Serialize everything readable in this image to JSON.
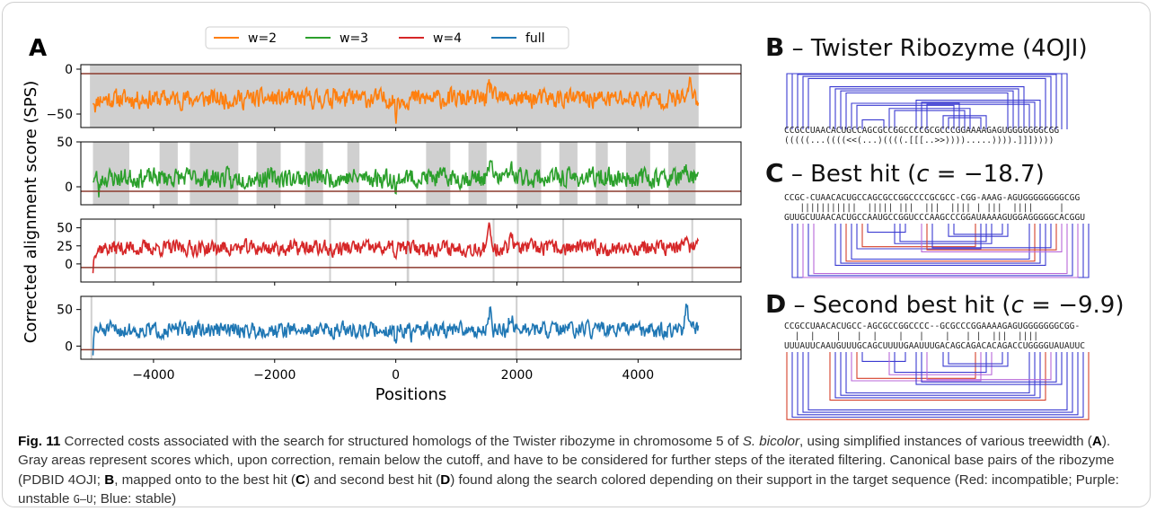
{
  "panel_labels": {
    "A": "A",
    "B": "B",
    "C": "C",
    "D": "D"
  },
  "panel_B": {
    "title": "– Twister Ribozyme (4OJI)",
    "sequence": "CCGCCUAACACUGCCAGCGCCGGCCCCGCGCCCGGAAAAGAGUGGGGGGGCGG",
    "structure": "(((((...((((<<(...)((((.[[[..>>)))).....)))).]]]))))"
  },
  "panel_C": {
    "title": "– Best hit",
    "formula_var": "c",
    "formula_val": "−18.7",
    "query": "CCGC-CUAACACUGCCAGCGCCGGCCCCGCGCC-CGG-AAAG-AGUGGGGGGGGCGG",
    "match": "   |||||||||||  ||||| |||  |||  |||| | |||  ||||     |  ",
    "target": "GUUGCUUAACACUGCCAAUGCCGGUCCCAAGCCCGGAUAAAAGUGGAGGGGGCACGGU"
  },
  "panel_D": {
    "title": "– Second best hit",
    "formula_var": "c",
    "formula_val": "−9.9",
    "query": "CCGCCUAACACUGCC-AGCGCCGGCCCC--GCGCCCGGAAAAGAGUGGGGGGGCGG-",
    "match": "  |  |    |   |  |    |   |    |   | |  |||  ||||      ",
    "target": "UUUAUUCAAUGUUUGCAGCUUUUGAAUUUGACAGCAGACACAGACCUGGGGUAUAUUC"
  },
  "chart_data": {
    "type": "line",
    "xlabel": "Positions",
    "ylabel": "Corrected alignment score (SPS)",
    "xlim": [
      -5200,
      5700
    ],
    "xticks": [
      -4000,
      -2000,
      0,
      2000,
      4000
    ],
    "xtick_labels": [
      "−4000",
      "−2000",
      "0",
      "2000",
      "4000"
    ],
    "legend": [
      "w=2",
      "w=3",
      "w=4",
      "full"
    ],
    "legend_position": "top-center",
    "series": [
      {
        "name": "w=2",
        "color": "#ff7f0e",
        "ylim": [
          -65,
          5
        ],
        "yticks": [
          0,
          -50
        ],
        "mean": -33,
        "amp": 7,
        "cutoff": -5,
        "seed": 11,
        "peaks": [
          [
            1550,
            20
          ],
          [
            4850,
            35
          ],
          [
            -1000,
            8
          ]
        ],
        "dips": [
          [
            0,
            -25
          ],
          [
            -4950,
            -10
          ]
        ],
        "gray": [
          [
            -5050,
            5000
          ]
        ]
      },
      {
        "name": "w=3",
        "color": "#2ca02c",
        "ylim": [
          -20,
          50
        ],
        "yticks": [
          50,
          0
        ],
        "mean": 10,
        "amp": 7,
        "cutoff": -5,
        "seed": 23,
        "peaks": [
          [
            1550,
            25
          ],
          [
            1900,
            20
          ],
          [
            4800,
            15
          ]
        ],
        "dips": [
          [
            0,
            -25
          ],
          [
            -4900,
            -20
          ],
          [
            -2700,
            -15
          ]
        ],
        "gray": [
          [
            -5000,
            -4400
          ],
          [
            -3900,
            -3600
          ],
          [
            -3400,
            -2600
          ],
          [
            -2300,
            -1900
          ],
          [
            -1500,
            -1200
          ],
          [
            -800,
            -600
          ],
          [
            500,
            900
          ],
          [
            1200,
            1500
          ],
          [
            2000,
            2400
          ],
          [
            2700,
            3000
          ],
          [
            3300,
            3500
          ],
          [
            3800,
            4200
          ],
          [
            4500,
            4950
          ]
        ]
      },
      {
        "name": "w=4",
        "color": "#d62728",
        "ylim": [
          -25,
          62
        ],
        "yticks": [
          50,
          25,
          0
        ],
        "mean": 22,
        "amp": 7,
        "cutoff": -5,
        "seed": 37,
        "peaks": [
          [
            1550,
            35
          ],
          [
            1900,
            30
          ],
          [
            4800,
            30
          ]
        ],
        "dips": [
          [
            0,
            -20
          ],
          [
            -5000,
            -30
          ],
          [
            -1050,
            -15
          ]
        ],
        "gray": [
          [
            -4650,
            -4630
          ],
          [
            -2980,
            -2960
          ],
          [
            -1100,
            -1080
          ],
          [
            180,
            220
          ],
          [
            1600,
            1620
          ],
          [
            2000,
            2020
          ],
          [
            2750,
            2770
          ],
          [
            4880,
            4900
          ]
        ]
      },
      {
        "name": "full",
        "color": "#1f77b4",
        "ylim": [
          -18,
          68
        ],
        "yticks": [
          50,
          0
        ],
        "mean": 22,
        "amp": 7,
        "cutoff": -5,
        "seed": 51,
        "peaks": [
          [
            1550,
            40
          ],
          [
            1900,
            30
          ],
          [
            4800,
            35
          ]
        ],
        "dips": [
          [
            0,
            -25
          ],
          [
            -5000,
            -30
          ],
          [
            250,
            -15
          ]
        ],
        "gray": [
          [
            -5040,
            -5020
          ],
          [
            1980,
            2010
          ]
        ]
      }
    ]
  },
  "caption": {
    "fig": "Fig. 11",
    "t1": " Corrected costs associated with the search for structured homologs of the Twister ribozyme in chromosome 5 of ",
    "species": "S. bicolor",
    "t2": ", using simplified instances of various treewidth (",
    "A": "A",
    "t3": "). Gray areas represent scores which, upon correction, remain below the cutoff, and have to be considered for further steps of the iterated filtering. Canonical base pairs of the ribozyme (PDBID 4OJI; ",
    "B": "B",
    "t4": ", mapped onto to the best hit (",
    "C": "C",
    "t5": ") and second best hit (",
    "D": "D",
    "t6": ") found along the search colored depending on their support in the target sequence (Red: incompatible; Purple: unstable ",
    "gu": "G–U",
    "t7": "; Blue: stable)"
  }
}
